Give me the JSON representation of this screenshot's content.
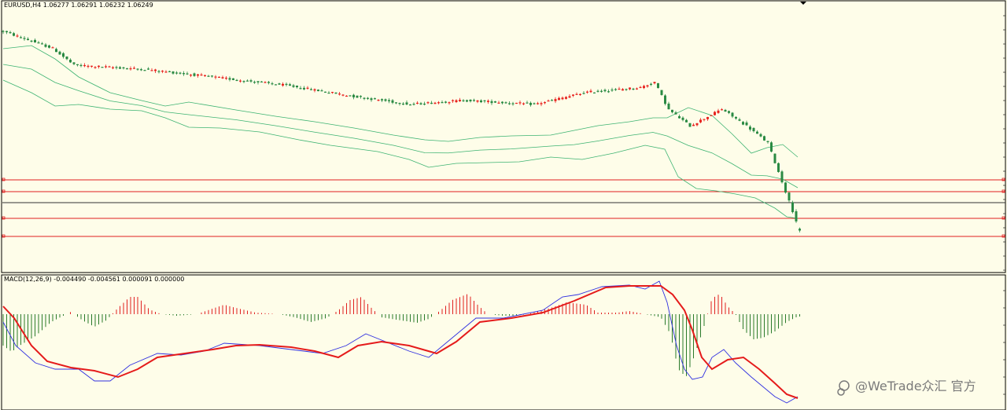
{
  "main_panel": {
    "label": "EURUSD,H4  1.06277 1.06291 1.06232 1.06249"
  },
  "macd_panel": {
    "label": "MACD(12,26,9) -0.004490 -0.004561 0.000091 0.000000"
  },
  "watermark": {
    "text": "@WeTrade众汇 官方"
  },
  "colors": {
    "background": "#fefde9",
    "bull_candle": "#e8231f",
    "bear_candle": "#2a8a43",
    "bollinger": "#3cb371",
    "h_line": "#e02020",
    "price_line": "#333333",
    "macd_line": "#3030e0",
    "signal_line": "#e51b1b",
    "hist_up": "#e02020",
    "hist_down": "#2a7a2a"
  },
  "chart_data": [
    {
      "type": "candlestick",
      "symbol": "EURUSD",
      "timeframe": "H4",
      "last_bar": {
        "open": 1.06277,
        "high": 1.06291,
        "low": 1.06232,
        "close": 1.06249
      },
      "indicators": [
        "Bollinger Bands"
      ],
      "grid": false,
      "close_trend": [
        {
          "bar": 0,
          "close": 1.092
        },
        {
          "bar": 14,
          "close": 1.0895
        },
        {
          "bar": 20,
          "close": 1.087
        },
        {
          "bar": 40,
          "close": 1.0864
        },
        {
          "bar": 60,
          "close": 1.0852
        },
        {
          "bar": 80,
          "close": 1.084
        },
        {
          "bar": 100,
          "close": 1.0823
        },
        {
          "bar": 115,
          "close": 1.0812
        },
        {
          "bar": 130,
          "close": 1.0818
        },
        {
          "bar": 150,
          "close": 1.0812
        },
        {
          "bar": 165,
          "close": 1.083
        },
        {
          "bar": 180,
          "close": 1.0837
        },
        {
          "bar": 184,
          "close": 1.0845
        },
        {
          "bar": 188,
          "close": 1.0804
        },
        {
          "bar": 194,
          "close": 1.078
        },
        {
          "bar": 203,
          "close": 1.0805
        },
        {
          "bar": 210,
          "close": 1.078
        },
        {
          "bar": 216,
          "close": 1.0755
        },
        {
          "bar": 225,
          "close": 1.06249
        }
      ]
    },
    {
      "type": "histogram+line",
      "name": "MACD(12,26,9)",
      "values": {
        "macd": -0.00449,
        "signal": -0.004561,
        "histogram": 9.1e-05,
        "extra": 0.0
      }
    }
  ]
}
